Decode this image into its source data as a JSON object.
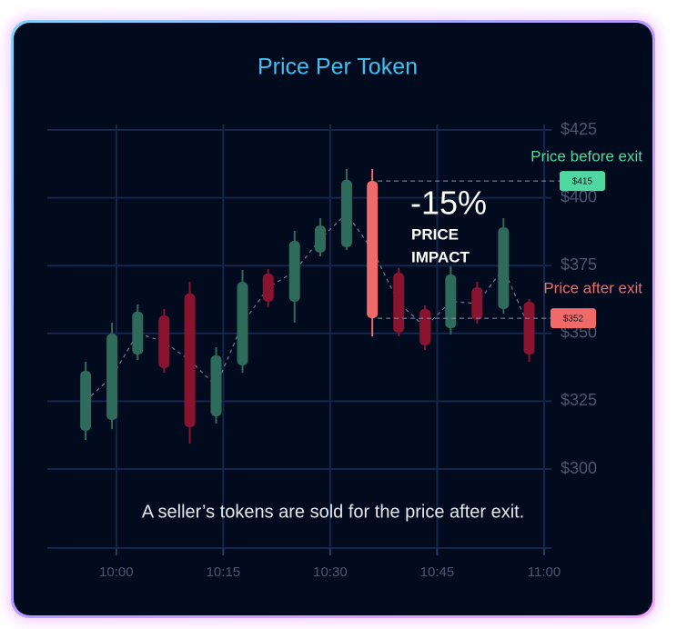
{
  "chart_data": {
    "type": "candlestick",
    "title": "Price Per Token",
    "x": [
      595.7,
      599.4,
      603.0,
      606.7,
      610.3,
      614.0,
      617.7,
      621.3,
      625.0,
      628.6,
      632.3,
      635.9,
      639.6,
      643.3,
      646.9,
      650.6,
      654.3,
      657.9
    ],
    "open": [
      314.1,
      318.1,
      342.2,
      356.6,
      364.7,
      319.4,
      338.2,
      372.1,
      361.7,
      379.8,
      381.8,
      406.2,
      372.4,
      359.0,
      351.9,
      367.0,
      359.0,
      361.7
    ],
    "high": [
      339.5,
      354.0,
      360.7,
      359.0,
      369.0,
      344.9,
      373.4,
      373.7,
      387.8,
      392.5,
      410.6,
      410.6,
      374.1,
      360.3,
      374.7,
      369.0,
      392.5,
      362.7
    ],
    "low": [
      310.7,
      314.7,
      340.2,
      335.5,
      309.4,
      316.8,
      335.5,
      359.7,
      354.0,
      378.4,
      380.8,
      348.9,
      348.9,
      343.9,
      349.6,
      353.6,
      357.3,
      339.5
    ],
    "close": [
      336.2,
      349.9,
      358.0,
      337.2,
      315.4,
      341.9,
      369.0,
      361.7,
      384.1,
      389.8,
      406.6,
      355.6,
      350.3,
      345.6,
      371.7,
      355.0,
      389.1,
      342.2
    ],
    "up_color": "#2f6b5a",
    "down_color": "#8a1330",
    "highlight_index": 11,
    "highlight_color": "#f06a6a",
    "xlim": [
      591.6,
      660
    ],
    "xticks": [
      {
        "value": 600,
        "label": "10:00"
      },
      {
        "value": 615,
        "label": "10:15"
      },
      {
        "value": 630,
        "label": "10:30"
      },
      {
        "value": 645,
        "label": "10:45"
      },
      {
        "value": 660,
        "label": "11:00"
      }
    ],
    "ylim": [
      300,
      425
    ],
    "yticks": [
      {
        "value": 300,
        "label": "$300"
      },
      {
        "value": 325,
        "label": "$325"
      },
      {
        "value": 350,
        "label": "$350"
      },
      {
        "value": 375,
        "label": "$375"
      },
      {
        "value": 400,
        "label": "$400"
      },
      {
        "value": 425,
        "label": "$425"
      }
    ],
    "grid": true,
    "before_exit": {
      "label": "Price before exit",
      "badge": "$415",
      "color": "#4fd8a0"
    },
    "after_exit": {
      "label": "Price after exit",
      "badge": "$352",
      "color": "#f06a6a"
    },
    "impact": {
      "value": "-15%",
      "lines": [
        "PRICE",
        "IMPACT"
      ]
    },
    "caption": "A seller’s tokens are sold for the price after exit."
  }
}
